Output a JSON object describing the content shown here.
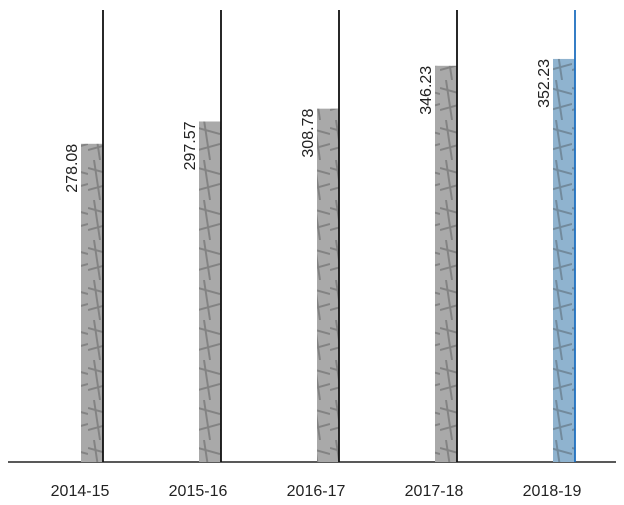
{
  "chart_data": {
    "type": "bar",
    "categories": [
      "2014-15",
      "2015-16",
      "2016-17",
      "2017-18",
      "2018-19"
    ],
    "values": [
      278.08,
      297.57,
      308.78,
      346.23,
      352.23
    ],
    "colors": [
      "#a9a9a9",
      "#a9a9a9",
      "#a9a9a9",
      "#a9a9a9",
      "#8fb3cf"
    ],
    "line_colors": [
      "#111111",
      "#111111",
      "#111111",
      "#111111",
      "#1f6fbf"
    ],
    "ylim": [
      0,
      395
    ]
  }
}
